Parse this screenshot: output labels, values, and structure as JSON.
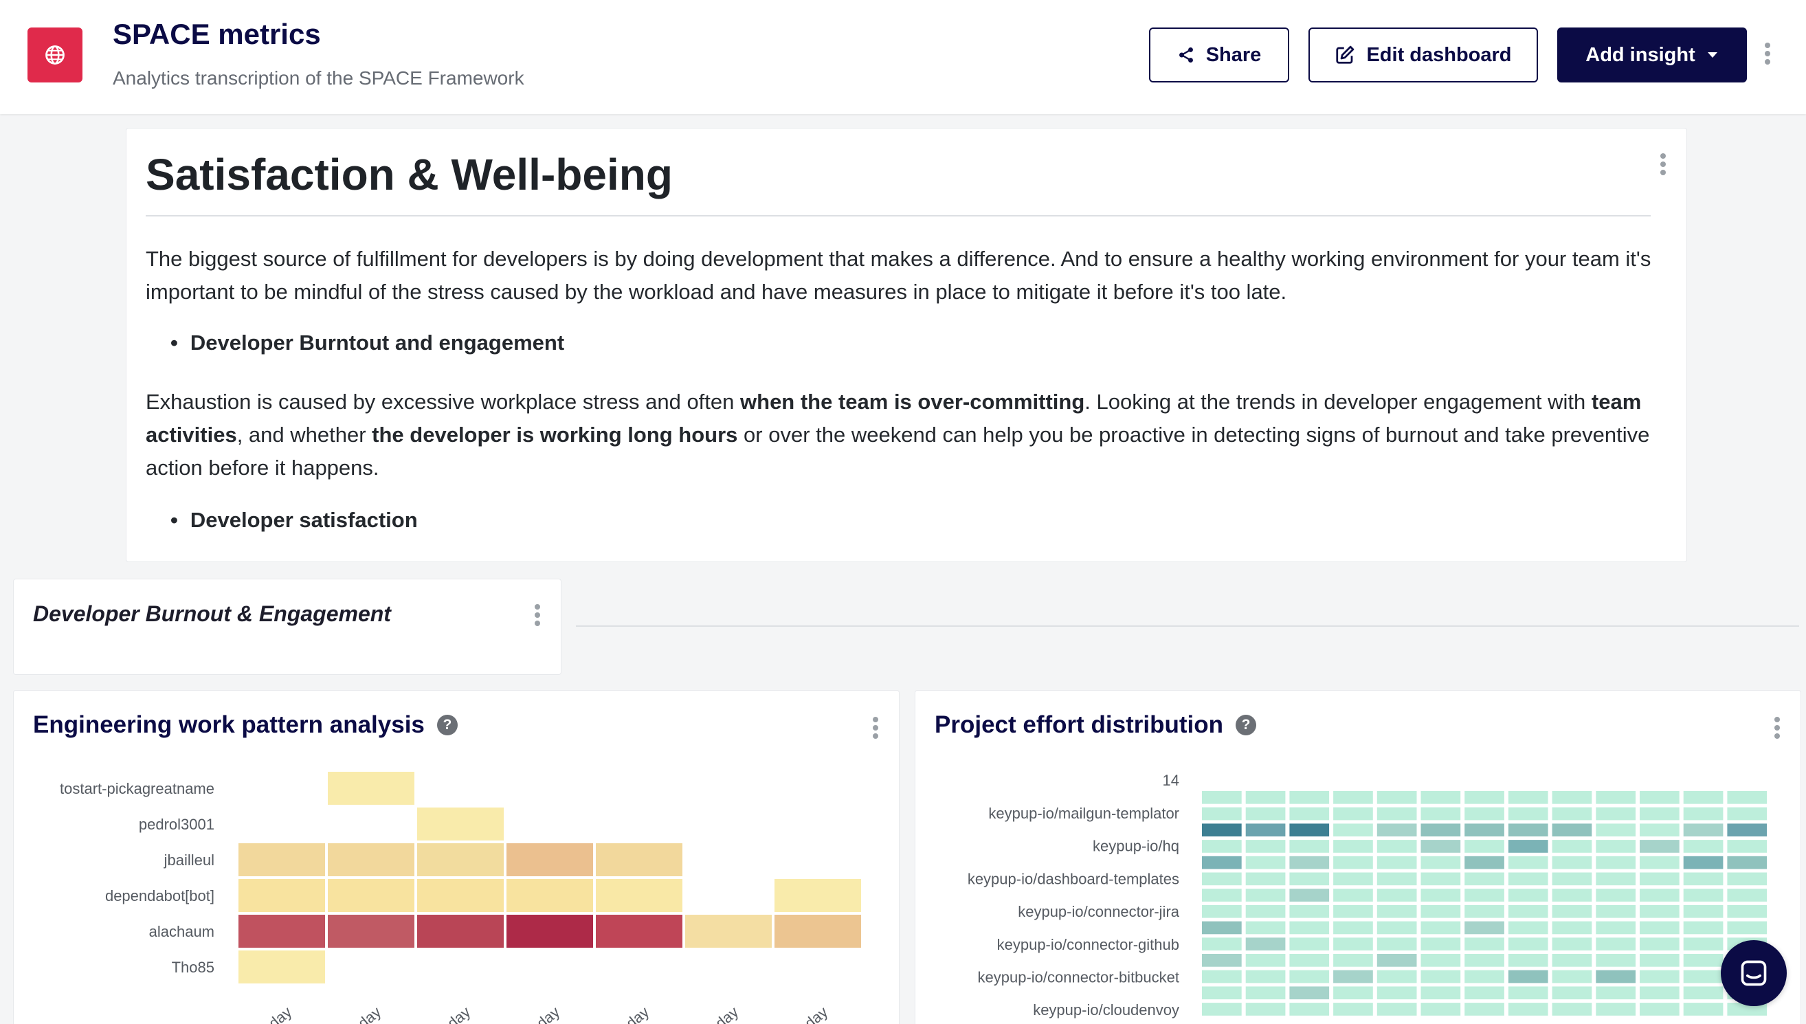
{
  "header": {
    "title": "SPACE metrics",
    "subtitle": "Analytics transcription of the SPACE Framework",
    "logo_icon": "globe-icon",
    "share_label": "Share",
    "edit_label": "Edit dashboard",
    "add_label": "Add insight",
    "accent": "#e02a4b",
    "brand": "#0b0b45"
  },
  "intro": {
    "heading": "Satisfaction & Well-being",
    "paragraph1": "The biggest source of fulfillment for developers is by doing development that makes a difference. And to ensure a healthy working environment for your team it's important to be mindful of the stress caused by the workload and have measures in place to mitigate it before it's too late.",
    "bullet1": "Developer Burntout and engagement",
    "p2_a": "Exhaustion is caused by excessive workplace stress and often ",
    "p2_b": "when the team is over-committing",
    "p2_c": ". Looking at the trends in developer engagement with ",
    "p2_d": "team activities",
    "p2_e": ", and whether ",
    "p2_f": "the developer is working long hours",
    "p2_g": " or over the weekend can help you be proactive in detecting signs of burnout and take preventive action before it happens.",
    "bullet2": "Developer satisfaction"
  },
  "section": {
    "label": "Developer Burnout & Engagement"
  },
  "chart_data": [
    {
      "type": "heatmap",
      "title": "Engineering work pattern analysis",
      "rows": [
        "tostart-pickagreatname",
        "pedrol3001",
        "jbailleul",
        "dependabot[bot]",
        "alachaum",
        "Tho85"
      ],
      "x_tick_labels": [
        "day",
        "day",
        "day",
        "day",
        "day",
        "day",
        "day"
      ],
      "cells": [
        [
          null,
          "#f9ebab",
          null,
          null,
          null,
          null,
          null
        ],
        [
          null,
          null,
          "#f9ebab",
          null,
          null,
          null,
          null
        ],
        [
          "#f2d89c",
          "#f2d89c",
          "#f2dc9e",
          "#ebc08f",
          "#f2d89c",
          null,
          null
        ],
        [
          "#f8e39f",
          "#f8e39f",
          "#f8e39f",
          "#f8e39f",
          "#f9e8a6",
          null,
          "#f9ebab"
        ],
        [
          "#c0525f",
          "#c05a64",
          "#b94556",
          "#ad2a48",
          "#bf4557",
          "#f4dea3",
          "#ecc591"
        ],
        [
          "#f9ebab",
          null,
          null,
          null,
          null,
          null,
          null
        ]
      ]
    },
    {
      "type": "heatmap",
      "title": "Project effort distribution",
      "top_label": "14",
      "rows": [
        "keypup-io/mailgun-templator",
        "keypup-io/hq",
        "keypup-io/dashboard-templates",
        "keypup-io/connector-jira",
        "keypup-io/connector-github",
        "keypup-io/connector-bitbucket",
        "keypup-io/cloudenvoy"
      ],
      "base_color": "#bdeedb",
      "dark_cells": [
        {
          "row": 2,
          "col": 0,
          "color": "#3d7f92"
        },
        {
          "row": 2,
          "col": 1,
          "color": "#6ba3ae"
        },
        {
          "row": 2,
          "col": 2,
          "color": "#3d7f92"
        },
        {
          "row": 2,
          "col": 4,
          "color": "#a6d3ca"
        },
        {
          "row": 2,
          "col": 5,
          "color": "#8fc2bd"
        },
        {
          "row": 2,
          "col": 6,
          "color": "#8fc2bd"
        },
        {
          "row": 2,
          "col": 7,
          "color": "#8fc2bd"
        },
        {
          "row": 2,
          "col": 8,
          "color": "#8fc2bd"
        },
        {
          "row": 2,
          "col": 11,
          "color": "#a6d3ca"
        },
        {
          "row": 2,
          "col": 12,
          "color": "#6ba3ae"
        },
        {
          "row": 3,
          "col": 5,
          "color": "#a6d3ca"
        },
        {
          "row": 3,
          "col": 7,
          "color": "#7bb3b6"
        },
        {
          "row": 3,
          "col": 10,
          "color": "#a6d3ca"
        },
        {
          "row": 4,
          "col": 0,
          "color": "#7bb3b6"
        },
        {
          "row": 4,
          "col": 2,
          "color": "#a6d3ca"
        },
        {
          "row": 4,
          "col": 6,
          "color": "#8fc2bd"
        },
        {
          "row": 4,
          "col": 11,
          "color": "#7bb3b6"
        },
        {
          "row": 4,
          "col": 12,
          "color": "#8fc2bd"
        },
        {
          "row": 6,
          "col": 2,
          "color": "#a6d3ca"
        },
        {
          "row": 8,
          "col": 0,
          "color": "#8fc2bd"
        },
        {
          "row": 8,
          "col": 6,
          "color": "#a6d3ca"
        },
        {
          "row": 9,
          "col": 1,
          "color": "#a6d3ca"
        },
        {
          "row": 10,
          "col": 0,
          "color": "#a6d3ca"
        },
        {
          "row": 10,
          "col": 4,
          "color": "#a6d3ca"
        },
        {
          "row": 11,
          "col": 3,
          "color": "#a6d3ca"
        },
        {
          "row": 11,
          "col": 7,
          "color": "#8fc2bd"
        },
        {
          "row": 11,
          "col": 9,
          "color": "#8fc2bd"
        },
        {
          "row": 12,
          "col": 2,
          "color": "#a6d3ca"
        }
      ]
    }
  ]
}
